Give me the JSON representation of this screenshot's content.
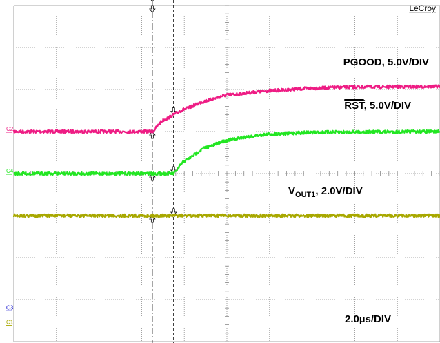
{
  "brand": "LeCroy",
  "labels": {
    "pgood": "PGOOD, 5.0V/DIV",
    "rst_name": "RST",
    "rst_scale": ", 5.0V/DIV",
    "vout_main": "V",
    "vout_sub": "OUT1",
    "vout_scale": ", 2.0V/DIV",
    "timebase": "2.0µs/DIV"
  },
  "colors": {
    "pgood": "#ee1c84",
    "rst": "#22e622",
    "vout1": "#a8a800",
    "c3": "#0000cc",
    "grid": "#8a8a8a"
  },
  "channels": [
    {
      "id": "C2",
      "name": "PGOOD",
      "color": "#ee1c84"
    },
    {
      "id": "C4",
      "name": "RST",
      "color": "#22e622"
    },
    {
      "id": "C3",
      "name": "",
      "color": "#0000cc"
    },
    {
      "id": "C1",
      "name": "VOUT1",
      "color": "#a8a800"
    }
  ],
  "chart_data": {
    "type": "line",
    "title": "",
    "xlabel": "2.0µs/DIV",
    "ylabel": "",
    "x_divisions": 10,
    "y_divisions": 8,
    "x_unit": "div",
    "y_unit": "div",
    "grid": true,
    "cursors_x_div": [
      3.25,
      3.75
    ],
    "series": [
      {
        "name": "PGOOD",
        "channel": "C2",
        "color": "#ee1c84",
        "scale": "5.0V/DIV",
        "points": [
          [
            0,
            5.0
          ],
          [
            3.25,
            5.0
          ],
          [
            3.5,
            5.27
          ],
          [
            4,
            5.53
          ],
          [
            4.5,
            5.73
          ],
          [
            5,
            5.87
          ],
          [
            6,
            5.97
          ],
          [
            7,
            6.03
          ],
          [
            8,
            6.06
          ],
          [
            10,
            6.07
          ]
        ]
      },
      {
        "name": "RST",
        "channel": "C4",
        "color": "#22e622",
        "scale": "5.0V/DIV",
        "points": [
          [
            0,
            4.0
          ],
          [
            3.75,
            4.0
          ],
          [
            4,
            4.3
          ],
          [
            4.5,
            4.62
          ],
          [
            5,
            4.79
          ],
          [
            5.5,
            4.88
          ],
          [
            6,
            4.94
          ],
          [
            7,
            4.98
          ],
          [
            8,
            4.99
          ],
          [
            10,
            5.0
          ]
        ]
      },
      {
        "name": "VOUT1",
        "channel": "C1",
        "color": "#a8a800",
        "scale": "2.0V/DIV",
        "points": [
          [
            0,
            3.0
          ],
          [
            10,
            3.0
          ]
        ]
      }
    ]
  }
}
